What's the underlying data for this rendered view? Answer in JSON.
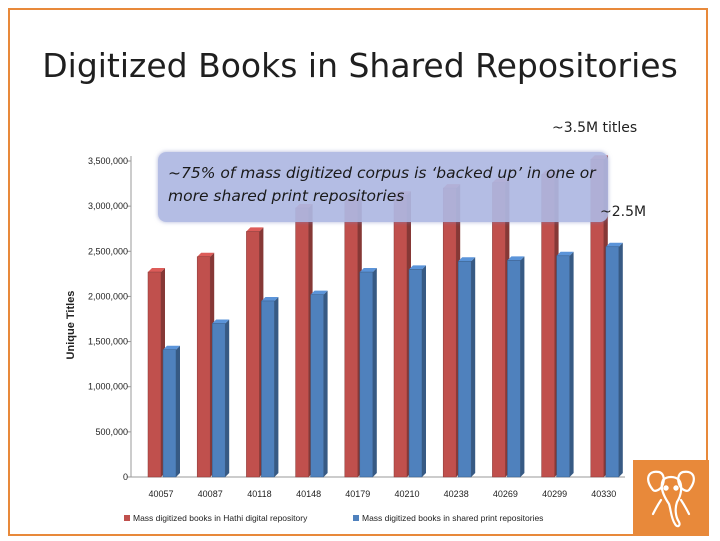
{
  "slide": {
    "title": "Digitized Books in Shared Repositories",
    "annotation_top": "~3.5M titles",
    "annotation_right": "~2.5M",
    "callout": "~75% of mass digitized corpus is ‘backed up’ in one or more shared print repositories"
  },
  "colors": {
    "frame": "#e8893a",
    "hathi": "#c0504d",
    "shared": "#4f81bd",
    "callout": "#aeb7e2",
    "logo": "#e8893a"
  },
  "logo": {
    "icon": "elephant-icon"
  },
  "chart_data": {
    "type": "bar",
    "title": "",
    "xlabel": "",
    "ylabel": "Unique Titles",
    "ylim": [
      0,
      3500000
    ],
    "yticks": [
      "0",
      "500,000",
      "1,000,000",
      "1,500,000",
      "2,000,000",
      "2,500,000",
      "3,000,000",
      "3,500,000"
    ],
    "ytick_values": [
      0,
      500000,
      1000000,
      1500000,
      2000000,
      2500000,
      3000000,
      3500000
    ],
    "categories": [
      "40057",
      "40087",
      "40118",
      "40148",
      "40179",
      "40210",
      "40238",
      "40269",
      "40299",
      "40330"
    ],
    "series": [
      {
        "name": "Mass digitized books in Hathi digital repository",
        "color": "#c0504d",
        "values": [
          2270000,
          2440000,
          2720000,
          2980000,
          3050000,
          3120000,
          3200000,
          3260000,
          3350000,
          3520000
        ]
      },
      {
        "name": "Mass digitized books in shared print repositories",
        "color": "#4f81bd",
        "values": [
          1410000,
          1700000,
          1950000,
          2020000,
          2270000,
          2300000,
          2390000,
          2400000,
          2450000,
          2550000
        ]
      }
    ],
    "legend": "bottom",
    "grid": false
  }
}
